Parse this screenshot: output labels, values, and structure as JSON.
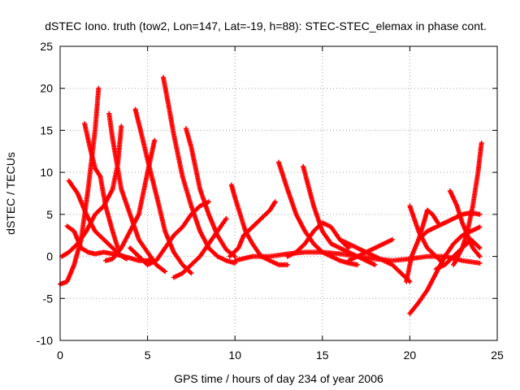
{
  "chart_data": {
    "type": "scatter",
    "title": "dSTEC Iono. truth (tow2, Lon=147, Lat=-19, h=88): STEC-STEC_elemax in phase cont.",
    "xlabel": "GPS time / hours of day 234 of year 2006",
    "ylabel": "dSTEC  / TECUs",
    "xlim": [
      0,
      25
    ],
    "ylim": [
      -10,
      25
    ],
    "xticks": [
      0,
      5,
      10,
      15,
      20,
      25
    ],
    "yticks": [
      -10,
      -5,
      0,
      5,
      10,
      15,
      20,
      25
    ],
    "grid": true,
    "marker": "+",
    "color": "#ff0000",
    "series": [
      {
        "x": [
          0,
          0.4,
          0.8,
          1.2,
          1.6,
          2.0,
          2.2
        ],
        "y": [
          -3.3,
          -3.0,
          -1.0,
          2.0,
          8.0,
          15.0,
          20.0
        ]
      },
      {
        "x": [
          0.4,
          0.8,
          1.2,
          1.6,
          2.0,
          2.5,
          3.0,
          3.5,
          4.0,
          4.5,
          5.0,
          5.3
        ],
        "y": [
          3.6,
          3.0,
          1.0,
          0.5,
          0.3,
          0.5,
          0.3,
          0.1,
          -0.2,
          -0.5,
          -0.5,
          -0.3
        ]
      },
      {
        "x": [
          0.5,
          1.0,
          1.5,
          2.0,
          2.5,
          3.0,
          3.4,
          3.8
        ],
        "y": [
          9.0,
          7.5,
          5.0,
          3.0,
          2.0,
          1.0,
          0.2,
          -0.3
        ]
      },
      {
        "x": [
          1.4,
          1.7,
          2.0,
          2.3,
          2.6,
          3.0,
          3.3
        ],
        "y": [
          15.8,
          13.0,
          10.5,
          9.5,
          6.0,
          3.0,
          1.0
        ]
      },
      {
        "x": [
          2.8,
          3.0,
          3.5,
          4.0,
          4.5,
          5.0,
          5.5,
          6.0
        ],
        "y": [
          17.0,
          14.0,
          8.0,
          5.0,
          2.0,
          0.5,
          -1.0,
          -1.8
        ]
      },
      {
        "x": [
          3.5,
          3.3,
          3.0,
          2.5,
          2.0,
          1.5,
          1.0,
          0.5,
          0.1
        ],
        "y": [
          15.5,
          11.0,
          8.0,
          6.0,
          5.0,
          3.0,
          1.5,
          0.5,
          0.0
        ]
      },
      {
        "x": [
          4.3,
          4.6,
          5.0,
          5.3,
          5.6,
          6.0,
          6.5,
          7.0,
          7.5
        ],
        "y": [
          17.5,
          15.0,
          11.5,
          9.0,
          6.5,
          3.0,
          0.5,
          -1.0,
          -2.0
        ]
      },
      {
        "x": [
          5.4,
          5.0,
          4.5,
          4.0,
          3.5,
          3.0,
          2.6
        ],
        "y": [
          13.8,
          10.0,
          5.0,
          3.0,
          1.0,
          -0.3,
          -0.5
        ]
      },
      {
        "x": [
          5.9,
          6.2,
          6.5,
          7.0,
          7.5,
          8.0,
          8.5,
          9.0,
          9.5,
          10.0
        ],
        "y": [
          21.3,
          18.0,
          14.5,
          9.5,
          6.0,
          3.0,
          1.0,
          0.0,
          -0.5,
          -0.8
        ]
      },
      {
        "x": [
          7.2,
          7.5,
          8.0,
          8.5,
          9.0,
          9.5,
          10.0
        ],
        "y": [
          15.2,
          13.0,
          8.0,
          5.0,
          2.5,
          0.8,
          0.0
        ]
      },
      {
        "x": [
          4.0,
          4.5,
          5.0,
          5.5,
          6.0,
          6.5,
          7.0,
          7.5,
          8.0,
          8.5
        ],
        "y": [
          1.0,
          0.0,
          -1.0,
          -0.5,
          1.0,
          2.5,
          3.5,
          5.0,
          6.0,
          6.5
        ]
      },
      {
        "x": [
          6.5,
          7.0,
          7.5,
          8.0,
          8.5,
          9.0,
          9.5
        ],
        "y": [
          -2.5,
          -2.0,
          -1.0,
          0.0,
          1.5,
          3.0,
          4.5
        ]
      },
      {
        "x": [
          9.8,
          10.0,
          10.3,
          10.6,
          11.0,
          11.5,
          12.0,
          12.5,
          13.0
        ],
        "y": [
          8.5,
          7.0,
          5.0,
          3.0,
          1.5,
          0.0,
          -0.5,
          -1.0,
          -1.0
        ]
      },
      {
        "x": [
          9.7,
          10.2,
          10.5,
          11.0,
          11.5,
          12.0,
          12.3
        ],
        "y": [
          0.0,
          1.0,
          2.5,
          3.5,
          4.5,
          5.5,
          6.5
        ]
      },
      {
        "x": [
          12.5,
          13.0,
          13.5,
          14.0,
          14.5,
          15.0,
          15.5,
          16.0,
          16.5,
          17.0
        ],
        "y": [
          11.2,
          8.0,
          5.0,
          3.0,
          1.5,
          0.5,
          0.0,
          -0.5,
          -0.8,
          -1.0
        ]
      },
      {
        "x": [
          13.9,
          14.5,
          15.0,
          15.5,
          16.0,
          16.5,
          17.0,
          17.5,
          18.0
        ],
        "y": [
          10.7,
          6.0,
          3.0,
          1.5,
          1.0,
          0.5,
          0.0,
          -0.5,
          -1.0
        ]
      },
      {
        "x": [
          13.0,
          13.5,
          14.0,
          14.5,
          15.0,
          15.5,
          16.0,
          16.5
        ],
        "y": [
          0.0,
          0.5,
          1.5,
          3.0,
          4.0,
          3.5,
          2.0,
          1.0
        ]
      },
      {
        "x": [
          10.0,
          11.0,
          12.0,
          13.0,
          14.0,
          15.0,
          16.0,
          17.0,
          18.0,
          19.0,
          20.0,
          21.0,
          22.0,
          23.0,
          24.0
        ],
        "y": [
          -0.5,
          0.0,
          0.0,
          0.3,
          0.5,
          0.5,
          0.3,
          0.0,
          -0.3,
          -0.5,
          -0.3,
          0.0,
          0.0,
          -0.5,
          -0.8
        ]
      },
      {
        "x": [
          16.0,
          17.0,
          18.0,
          18.5,
          19.0,
          19.5,
          20.0
        ],
        "y": [
          2.0,
          1.0,
          0.0,
          -0.5,
          -1.0,
          -2.0,
          -3.0
        ]
      },
      {
        "x": [
          16.5,
          17.0,
          17.5,
          18.0,
          18.5,
          19.0
        ],
        "y": [
          -0.5,
          0.0,
          0.5,
          1.0,
          1.5,
          2.0
        ]
      },
      {
        "x": [
          19.8,
          20.1,
          20.5,
          21.0,
          21.5,
          22.0,
          22.5,
          23.0,
          23.5,
          24.0
        ],
        "y": [
          -3.0,
          0.0,
          2.0,
          3.0,
          3.5,
          4.0,
          4.5,
          5.0,
          5.2,
          5.0
        ]
      },
      {
        "x": [
          20.0,
          20.5,
          21.0,
          21.5,
          22.0,
          22.5,
          23.0,
          23.5,
          24.0
        ],
        "y": [
          -6.8,
          -5.5,
          -4.0,
          -2.0,
          0.0,
          1.5,
          2.5,
          3.0,
          3.5
        ]
      },
      {
        "x": [
          20.5,
          20.8,
          21.0,
          21.3,
          21.6
        ],
        "y": [
          2.0,
          4.0,
          5.5,
          5.0,
          4.0
        ]
      },
      {
        "x": [
          20.0,
          20.5,
          21.0,
          21.5,
          22.0
        ],
        "y": [
          6.0,
          3.0,
          1.0,
          0.0,
          -1.0
        ]
      },
      {
        "x": [
          22.3,
          22.7,
          23.0,
          23.3,
          23.6,
          24.0
        ],
        "y": [
          7.8,
          6.0,
          4.0,
          2.5,
          1.0,
          0.0
        ]
      },
      {
        "x": [
          21.5,
          22.0,
          22.5,
          23.0,
          23.5,
          24.0
        ],
        "y": [
          -1.5,
          -1.0,
          0.0,
          1.0,
          2.0,
          1.0
        ]
      },
      {
        "x": [
          22.5,
          23.0,
          23.3,
          23.6,
          23.9,
          24.1
        ],
        "y": [
          -1.0,
          1.0,
          3.0,
          6.0,
          10.0,
          13.5
        ]
      }
    ]
  }
}
